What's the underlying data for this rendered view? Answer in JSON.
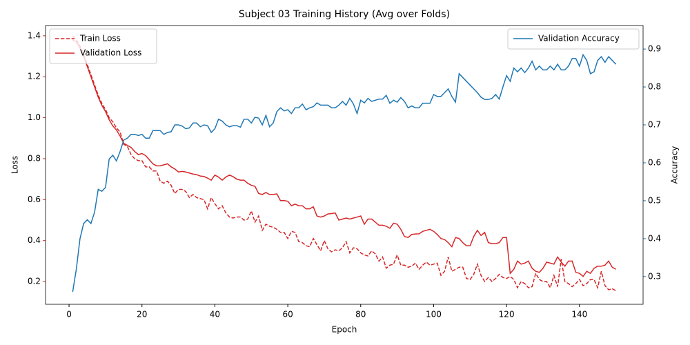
{
  "chart_data": {
    "type": "line",
    "title": "Subject 03 Training History (Avg over Folds)",
    "xlabel": "Epoch",
    "ylabel": "Loss",
    "y2label": "Accuracy",
    "x": [
      1,
      2,
      3,
      4,
      5,
      6,
      7,
      8,
      9,
      10,
      11,
      12,
      13,
      14,
      15,
      16,
      17,
      18,
      19,
      20,
      21,
      22,
      23,
      24,
      25,
      26,
      27,
      28,
      29,
      30,
      31,
      32,
      33,
      34,
      35,
      36,
      37,
      38,
      39,
      40,
      41,
      42,
      43,
      44,
      45,
      46,
      47,
      48,
      49,
      50,
      51,
      52,
      53,
      54,
      55,
      56,
      57,
      58,
      59,
      60,
      61,
      62,
      63,
      64,
      65,
      66,
      67,
      68,
      69,
      70,
      71,
      72,
      73,
      74,
      75,
      76,
      77,
      78,
      79,
      80,
      81,
      82,
      83,
      84,
      85,
      86,
      87,
      88,
      89,
      90,
      91,
      92,
      93,
      94,
      95,
      96,
      97,
      98,
      99,
      100,
      101,
      102,
      103,
      104,
      105,
      106,
      107,
      108,
      109,
      110,
      111,
      112,
      113,
      114,
      115,
      116,
      117,
      118,
      119,
      120,
      121,
      122,
      123,
      124,
      125,
      126,
      127,
      128,
      129,
      130,
      131,
      132,
      133,
      134,
      135,
      136,
      137,
      138,
      139,
      140,
      141,
      142,
      143,
      144,
      145,
      146,
      147,
      148,
      149,
      150
    ],
    "series": [
      {
        "name": "Train Loss",
        "color": "#d62728",
        "dash": true,
        "axis": "y",
        "values": [
          1.4,
          1.38,
          1.35,
          1.31,
          1.26,
          1.21,
          1.16,
          1.11,
          1.07,
          1.04,
          1.0,
          0.98,
          0.95,
          0.93,
          0.87,
          0.86,
          0.82,
          0.8,
          0.79,
          0.79,
          0.76,
          0.76,
          0.74,
          0.74,
          0.69,
          0.68,
          0.69,
          0.67,
          0.63,
          0.65,
          0.65,
          0.64,
          0.61,
          0.625,
          0.61,
          0.605,
          0.6,
          0.555,
          0.61,
          0.58,
          0.555,
          0.57,
          0.535,
          0.515,
          0.51,
          0.515,
          0.515,
          0.5,
          0.505,
          0.545,
          0.49,
          0.52,
          0.45,
          0.48,
          0.47,
          0.465,
          0.455,
          0.44,
          0.44,
          0.41,
          0.445,
          0.44,
          0.395,
          0.39,
          0.375,
          0.37,
          0.41,
          0.38,
          0.35,
          0.4,
          0.36,
          0.345,
          0.355,
          0.35,
          0.365,
          0.395,
          0.34,
          0.365,
          0.36,
          0.34,
          0.33,
          0.325,
          0.35,
          0.335,
          0.3,
          0.32,
          0.265,
          0.28,
          0.285,
          0.33,
          0.28,
          0.28,
          0.27,
          0.275,
          0.29,
          0.26,
          0.28,
          0.295,
          0.28,
          0.285,
          0.29,
          0.23,
          0.25,
          0.32,
          0.25,
          0.26,
          0.27,
          0.27,
          0.215,
          0.21,
          0.235,
          0.285,
          0.23,
          0.2,
          0.22,
          0.2,
          0.215,
          0.235,
          0.22,
          0.215,
          0.225,
          0.21,
          0.17,
          0.2,
          0.19,
          0.17,
          0.175,
          0.24,
          0.21,
          0.2,
          0.2,
          0.17,
          0.23,
          0.175,
          0.31,
          0.2,
          0.19,
          0.175,
          0.19,
          0.21,
          0.18,
          0.19,
          0.21,
          0.21,
          0.17,
          0.25,
          0.18,
          0.16,
          0.165,
          0.155
        ]
      },
      {
        "name": "Validation Loss",
        "color": "#d62728",
        "dash": false,
        "axis": "y",
        "values": [
          1.38,
          1.37,
          1.34,
          1.3,
          1.25,
          1.2,
          1.15,
          1.1,
          1.06,
          1.03,
          0.99,
          0.96,
          0.94,
          0.91,
          0.875,
          0.865,
          0.855,
          0.835,
          0.82,
          0.825,
          0.815,
          0.795,
          0.775,
          0.765,
          0.765,
          0.77,
          0.775,
          0.76,
          0.75,
          0.735,
          0.738,
          0.735,
          0.73,
          0.725,
          0.722,
          0.715,
          0.713,
          0.705,
          0.695,
          0.72,
          0.71,
          0.695,
          0.71,
          0.72,
          0.712,
          0.7,
          0.695,
          0.695,
          0.68,
          0.67,
          0.665,
          0.63,
          0.625,
          0.635,
          0.625,
          0.625,
          0.628,
          0.595,
          0.595,
          0.592,
          0.57,
          0.578,
          0.57,
          0.57,
          0.555,
          0.555,
          0.565,
          0.52,
          0.515,
          0.52,
          0.53,
          0.532,
          0.535,
          0.5,
          0.505,
          0.51,
          0.505,
          0.51,
          0.515,
          0.52,
          0.48,
          0.505,
          0.505,
          0.49,
          0.475,
          0.475,
          0.47,
          0.46,
          0.485,
          0.48,
          0.455,
          0.42,
          0.415,
          0.43,
          0.432,
          0.433,
          0.445,
          0.45,
          0.455,
          0.445,
          0.43,
          0.41,
          0.405,
          0.39,
          0.37,
          0.415,
          0.41,
          0.39,
          0.375,
          0.375,
          0.42,
          0.45,
          0.425,
          0.44,
          0.39,
          0.385,
          0.385,
          0.39,
          0.415,
          0.415,
          0.24,
          0.26,
          0.3,
          0.285,
          0.29,
          0.3,
          0.265,
          0.25,
          0.245,
          0.265,
          0.295,
          0.29,
          0.285,
          0.32,
          0.295,
          0.275,
          0.3,
          0.3,
          0.245,
          0.24,
          0.225,
          0.25,
          0.24,
          0.265,
          0.275,
          0.275,
          0.28,
          0.3,
          0.27,
          0.26
        ]
      },
      {
        "name": "Validation Accuracy",
        "color": "#1f77b4",
        "dash": false,
        "axis": "y2",
        "values": [
          0.26,
          0.32,
          0.4,
          0.44,
          0.45,
          0.44,
          0.47,
          0.53,
          0.525,
          0.535,
          0.61,
          0.62,
          0.605,
          0.63,
          0.66,
          0.665,
          0.675,
          0.675,
          0.672,
          0.675,
          0.665,
          0.665,
          0.685,
          0.685,
          0.685,
          0.675,
          0.68,
          0.682,
          0.7,
          0.7,
          0.697,
          0.69,
          0.692,
          0.705,
          0.705,
          0.695,
          0.7,
          0.698,
          0.68,
          0.69,
          0.715,
          0.71,
          0.7,
          0.695,
          0.698,
          0.698,
          0.694,
          0.715,
          0.715,
          0.705,
          0.72,
          0.718,
          0.7,
          0.725,
          0.695,
          0.705,
          0.735,
          0.745,
          0.737,
          0.74,
          0.73,
          0.745,
          0.745,
          0.755,
          0.74,
          0.745,
          0.748,
          0.758,
          0.752,
          0.752,
          0.752,
          0.745,
          0.745,
          0.752,
          0.762,
          0.752,
          0.77,
          0.755,
          0.73,
          0.765,
          0.758,
          0.77,
          0.762,
          0.765,
          0.768,
          0.768,
          0.778,
          0.757,
          0.765,
          0.76,
          0.772,
          0.762,
          0.745,
          0.75,
          0.745,
          0.745,
          0.757,
          0.757,
          0.757,
          0.78,
          0.775,
          0.775,
          0.785,
          0.795,
          0.775,
          0.76,
          0.835,
          0.825,
          0.815,
          0.805,
          0.795,
          0.785,
          0.773,
          0.767,
          0.767,
          0.77,
          0.78,
          0.768,
          0.8,
          0.83,
          0.815,
          0.85,
          0.84,
          0.85,
          0.838,
          0.85,
          0.868,
          0.845,
          0.855,
          0.845,
          0.845,
          0.855,
          0.845,
          0.86,
          0.845,
          0.845,
          0.855,
          0.875,
          0.875,
          0.855,
          0.885,
          0.87,
          0.835,
          0.84,
          0.87,
          0.88,
          0.865,
          0.88,
          0.87,
          0.86
        ]
      }
    ],
    "xlim": [
      -6.45,
      157.45
    ],
    "xticks": [
      0,
      20,
      40,
      60,
      80,
      100,
      120,
      140
    ],
    "ylim": [
      0.089,
      1.45
    ],
    "yticks": [
      0.2,
      0.4,
      0.6,
      0.8,
      {
        "value": 1,
        "label": "1.0"
      },
      1.2,
      1.4
    ],
    "y2lim": [
      0.227,
      0.962
    ],
    "y2ticks": [
      0.3,
      0.4,
      0.5,
      0.6,
      0.7,
      0.8,
      0.9
    ],
    "legend": "upper left",
    "legend2": "upper right"
  }
}
